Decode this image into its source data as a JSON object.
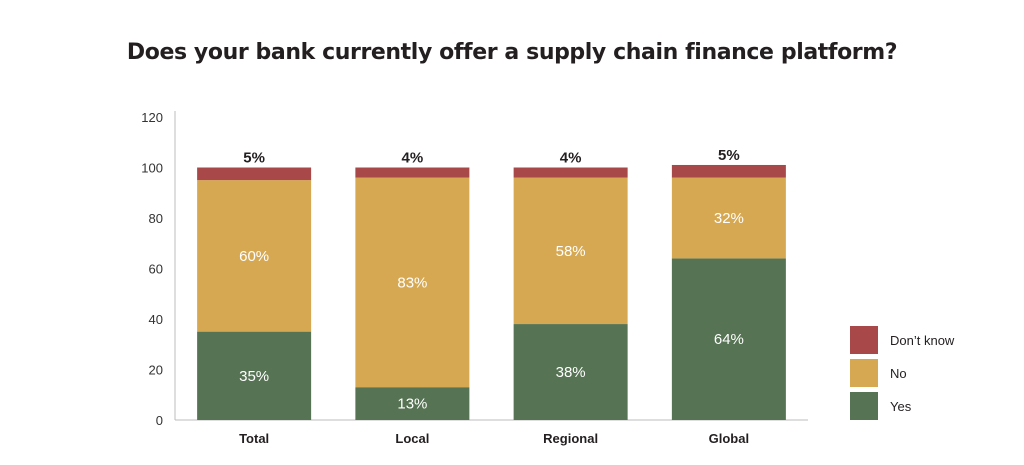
{
  "chart_data": {
    "type": "bar",
    "stacked": true,
    "title": "Does your bank currently offer a supply chain finance platform?",
    "xlabel": "",
    "ylabel": "",
    "ylim": [
      0,
      120
    ],
    "yticks": [
      "0",
      "20",
      "40",
      "60",
      "80",
      "100",
      "120"
    ],
    "categories": [
      "Total",
      "Local",
      "Regional",
      "Global"
    ],
    "series": [
      {
        "name": "Yes",
        "color": "#567353",
        "values": [
          35,
          13,
          38,
          64
        ],
        "labels": [
          "35%",
          "13%",
          "38%",
          "64%"
        ]
      },
      {
        "name": "No",
        "color": "#d6a852",
        "values": [
          60,
          83,
          58,
          32
        ],
        "labels": [
          "60%",
          "83%",
          "58%",
          "32%"
        ]
      },
      {
        "name": "Don't know",
        "color": "#a84848",
        "values": [
          5,
          4,
          4,
          5
        ],
        "labels": [
          "5%",
          "4%",
          "4%",
          "5%"
        ]
      }
    ],
    "legend": {
      "position": "bottom-right",
      "order": [
        "Don't know",
        "No",
        "Yes"
      ],
      "labels": [
        "Don’t know",
        "No",
        "Yes"
      ]
    }
  }
}
